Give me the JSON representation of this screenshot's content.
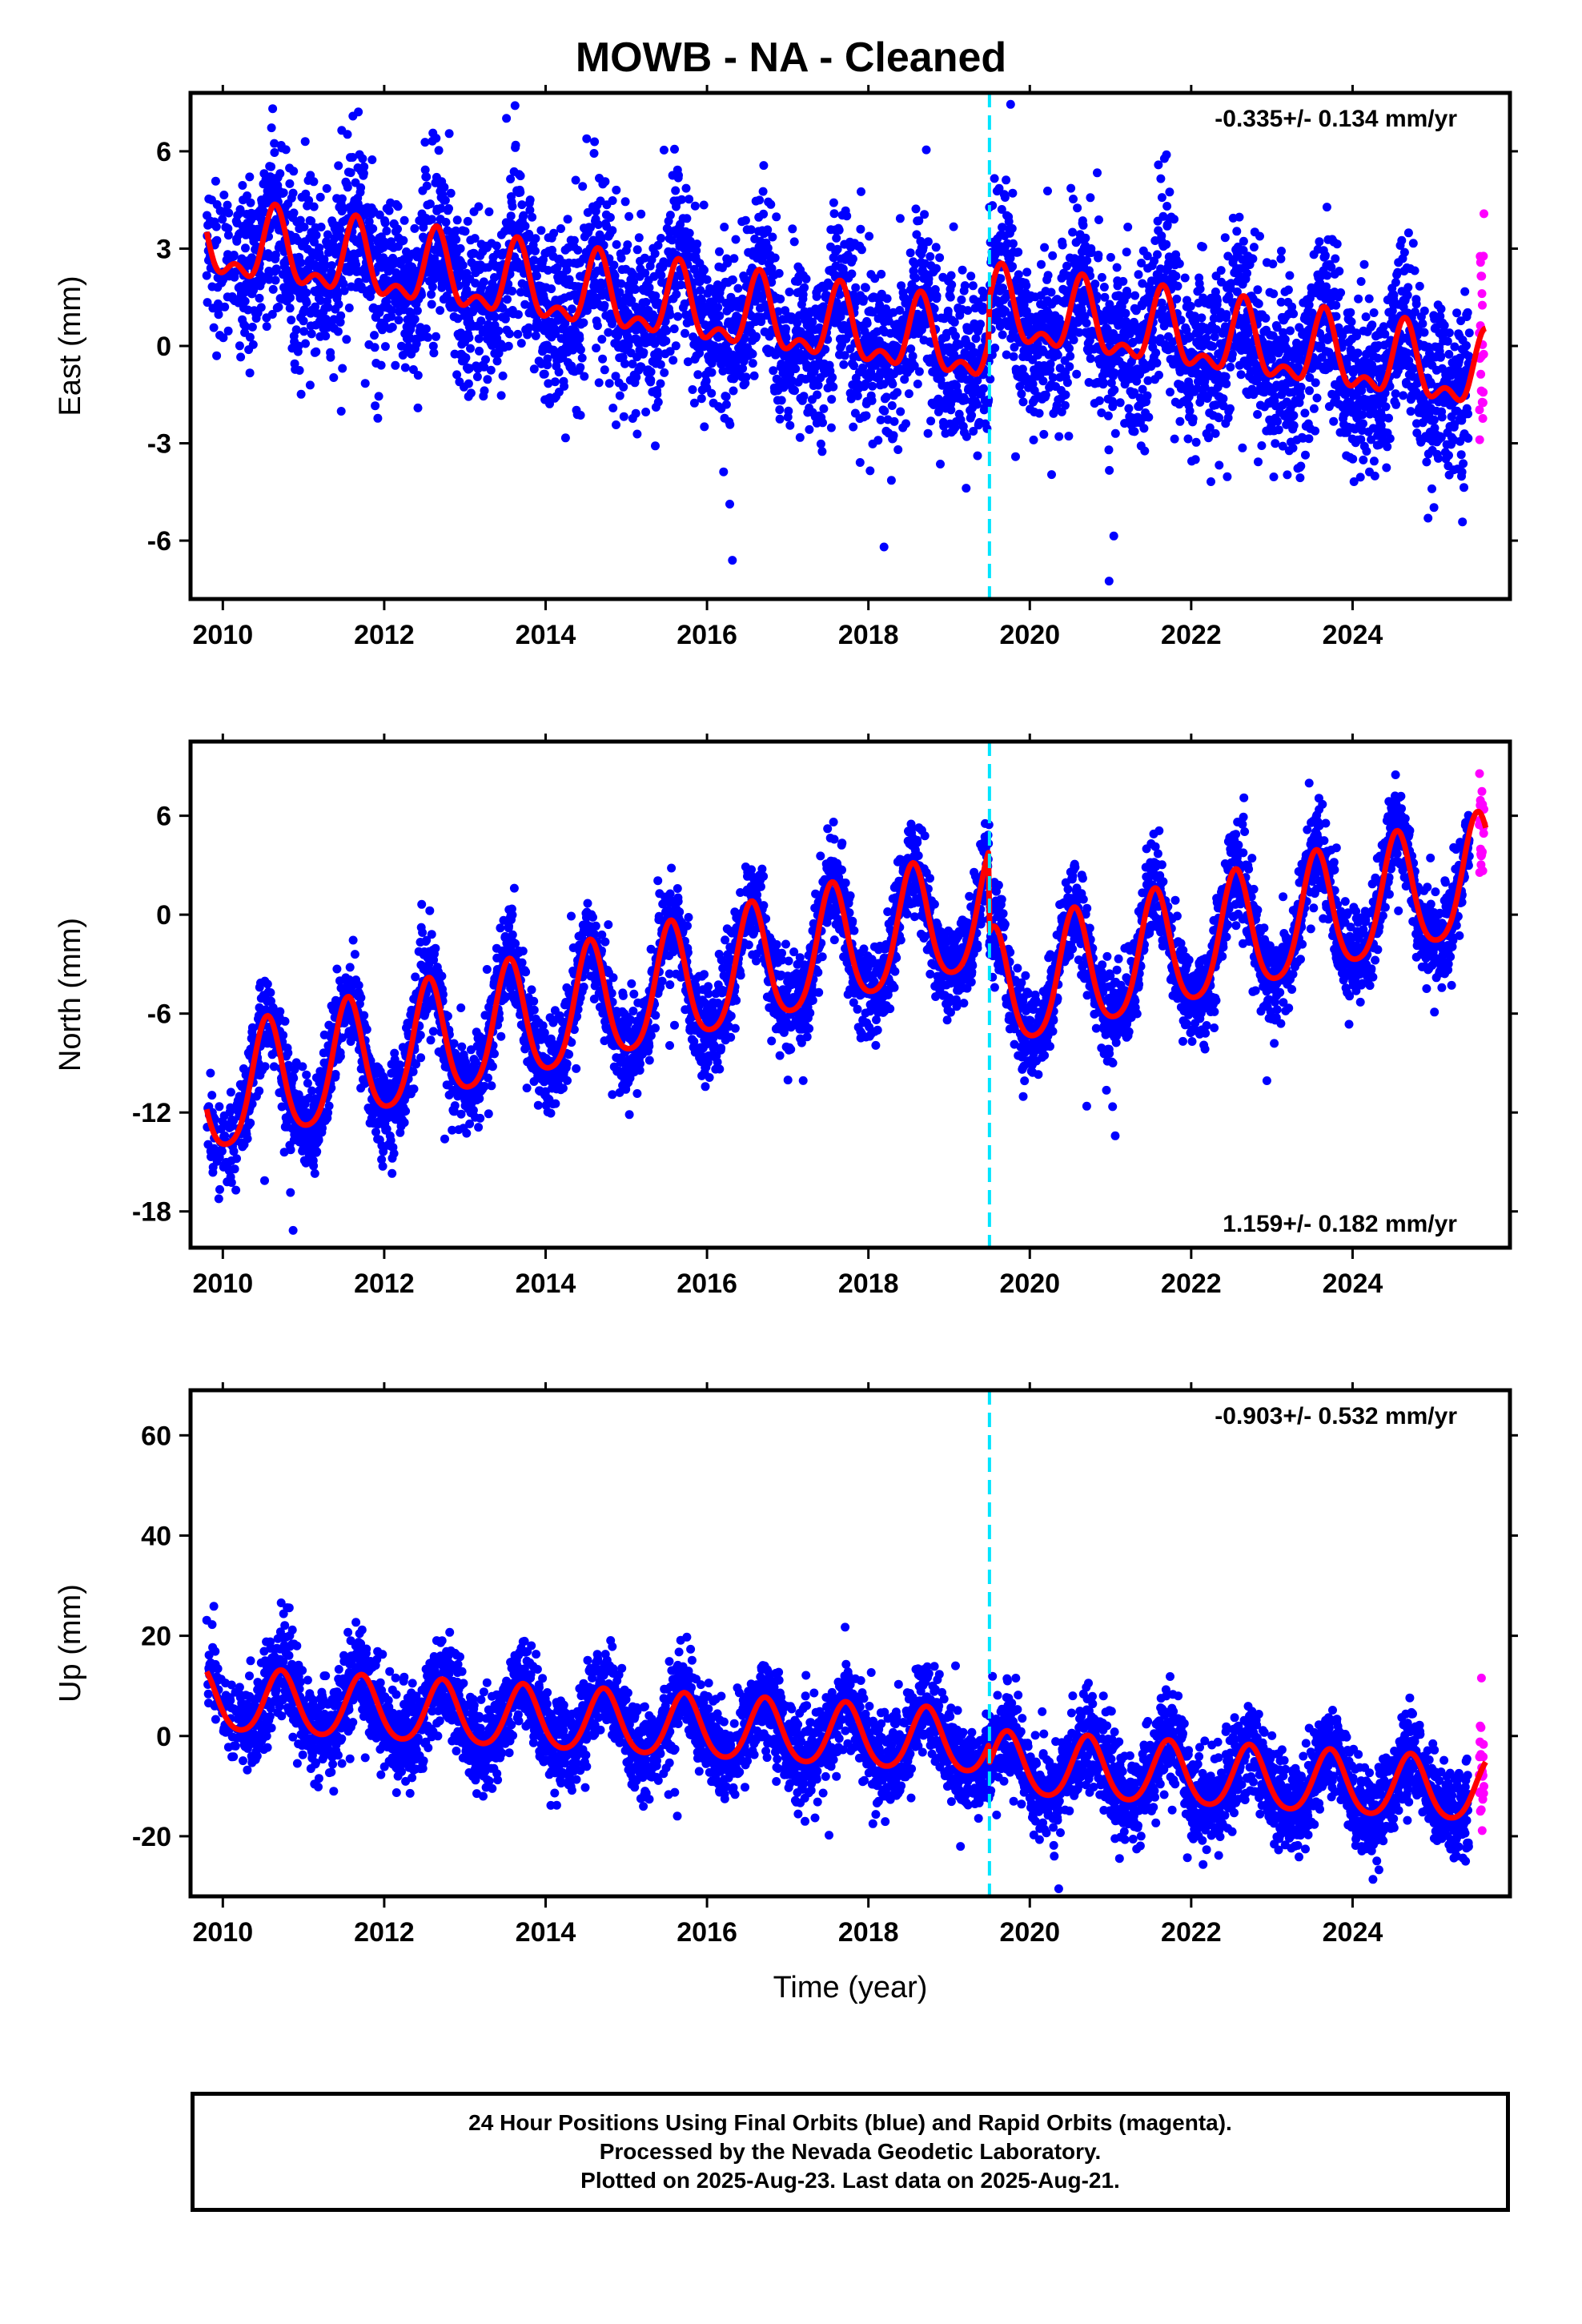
{
  "title": "MOWB  - NA - Cleaned",
  "x_axis_label": "Time (year)",
  "footer": {
    "line1": "24 Hour Positions Using Final Orbits (blue) and Rapid Orbits (magenta).",
    "line2": "Processed by the Nevada Geodetic Laboratory.",
    "line3": "Plotted on 2025-Aug-23. Last data on 2025-Aug-21."
  },
  "colors": {
    "final_orbits": "#0000ff",
    "rapid_orbits": "#ff00ff",
    "model_fit": "#ff0000",
    "event_line": "#00e5ff"
  },
  "chart_data": [
    {
      "type": "scatter",
      "panel": "east",
      "ylabel": "East (mm)",
      "xlabel": "",
      "xlim": [
        2009.6,
        2025.95
      ],
      "ylim": [
        -7.8,
        7.8
      ],
      "xticks": [
        2010,
        2012,
        2014,
        2016,
        2018,
        2020,
        2022,
        2024
      ],
      "yticks": [
        -6,
        -3,
        0,
        3,
        6
      ],
      "rate_text": "-0.335+/- 0.134 mm/yr",
      "rate_position": "top-right",
      "event_line_x": 2019.5,
      "data_start": 2009.8,
      "final_end": 2025.45,
      "last_data": 2025.64,
      "model": {
        "offset": 3.1,
        "rate": -0.335,
        "annual_amp": 1.0,
        "annual_phase_peak": 0.65,
        "semiannual_amp": 0.55,
        "step_at_event": 1.2,
        "fall_extra": -0.6
      },
      "data_scatter": 1.3,
      "points_per_year": 340
    },
    {
      "type": "scatter",
      "panel": "north",
      "ylabel": "North (mm)",
      "xlabel": "",
      "xlim": [
        2009.6,
        2025.95
      ],
      "ylim": [
        -20.2,
        10.5
      ],
      "xticks": [
        2010,
        2012,
        2014,
        2016,
        2018,
        2020,
        2022,
        2024
      ],
      "yticks": [
        -18,
        -12,
        -6,
        0,
        6
      ],
      "rate_text": "1.159+/- 0.182 mm/yr",
      "rate_position": "bottom-right",
      "event_line_x": 2019.5,
      "data_start": 2009.8,
      "final_end": 2025.45,
      "last_data": 2025.64,
      "model": {
        "offset": -11.2,
        "rate": 1.159,
        "annual_amp": 3.6,
        "annual_phase_peak": 0.55,
        "semiannual_amp": 0.6,
        "step_at_event": -5.0,
        "fall_extra": 0
      },
      "data_scatter": 1.4,
      "points_per_year": 340
    },
    {
      "type": "scatter",
      "panel": "up",
      "ylabel": "Up (mm)",
      "xlabel": "Time (year)",
      "xlim": [
        2009.6,
        2025.95
      ],
      "ylim": [
        -32,
        69
      ],
      "xticks": [
        2010,
        2012,
        2014,
        2016,
        2018,
        2020,
        2022,
        2024
      ],
      "yticks": [
        -20,
        0,
        20,
        40,
        60
      ],
      "rate_text": "-0.903+/- 0.532 mm/yr",
      "rate_position": "top-right",
      "event_line_x": 2019.5,
      "data_start": 2009.8,
      "final_end": 2025.45,
      "last_data": 2025.64,
      "model": {
        "offset": 7.0,
        "rate": -0.903,
        "annual_amp": 6.2,
        "annual_phase_peak": 0.72,
        "semiannual_amp": 0.8,
        "step_at_event": -4.0,
        "fall_extra": 0
      },
      "data_scatter": 4.5,
      "points_per_year": 340
    }
  ]
}
